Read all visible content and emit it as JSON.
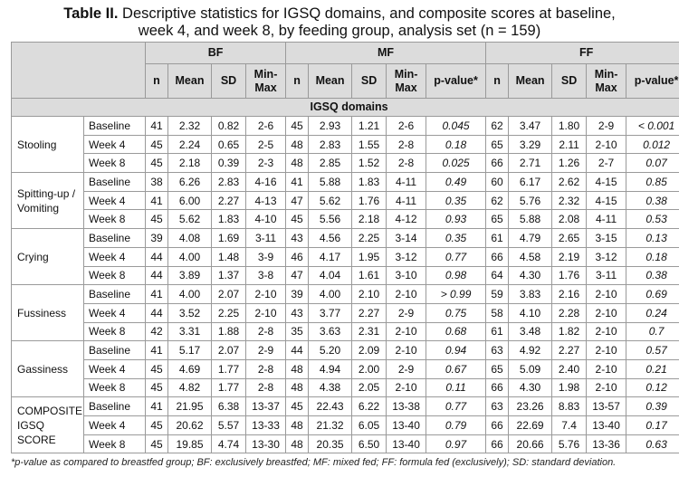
{
  "title": {
    "label": "Table II.",
    "line1": "Descriptive statistics for IGSQ domains, and composite scores at baseline,",
    "line2": "week 4, and week 8, by feeding group, analysis set (n = 159)"
  },
  "headers": {
    "groups": [
      "BF",
      "MF",
      "FF"
    ],
    "columns": [
      "n",
      "Mean",
      "SD",
      "Min-Max",
      "p-value*"
    ]
  },
  "section_label": "IGSQ domains",
  "domains": [
    {
      "name": "Stooling",
      "rows": [
        {
          "time": "Baseline",
          "bf": [
            "41",
            "2.32",
            "0.82",
            "2-6"
          ],
          "mf": [
            "45",
            "2.93",
            "1.21",
            "2-6"
          ],
          "mf_p": "0.045",
          "ff": [
            "62",
            "3.47",
            "1.80",
            "2-9"
          ],
          "ff_p": "< 0.001"
        },
        {
          "time": "Week 4",
          "bf": [
            "45",
            "2.24",
            "0.65",
            "2-5"
          ],
          "mf": [
            "48",
            "2.83",
            "1.55",
            "2-8"
          ],
          "mf_p": "0.18",
          "ff": [
            "65",
            "3.29",
            "2.11",
            "2-10"
          ],
          "ff_p": "0.012"
        },
        {
          "time": "Week 8",
          "bf": [
            "45",
            "2.18",
            "0.39",
            "2-3"
          ],
          "mf": [
            "48",
            "2.85",
            "1.52",
            "2-8"
          ],
          "mf_p": "0.025",
          "ff": [
            "66",
            "2.71",
            "1.26",
            "2-7"
          ],
          "ff_p": "0.07"
        }
      ]
    },
    {
      "name": "Spitting-up / Vomiting",
      "rows": [
        {
          "time": "Baseline",
          "bf": [
            "38",
            "6.26",
            "2.83",
            "4-16"
          ],
          "mf": [
            "41",
            "5.88",
            "1.83",
            "4-11"
          ],
          "mf_p": "0.49",
          "ff": [
            "60",
            "6.17",
            "2.62",
            "4-15"
          ],
          "ff_p": "0.85"
        },
        {
          "time": "Week 4",
          "bf": [
            "41",
            "6.00",
            "2.27",
            "4-13"
          ],
          "mf": [
            "47",
            "5.62",
            "1.76",
            "4-11"
          ],
          "mf_p": "0.35",
          "ff": [
            "62",
            "5.76",
            "2.32",
            "4-15"
          ],
          "ff_p": "0.38"
        },
        {
          "time": "Week 8",
          "bf": [
            "45",
            "5.62",
            "1.83",
            "4-10"
          ],
          "mf": [
            "45",
            "5.56",
            "2.18",
            "4-12"
          ],
          "mf_p": "0.93",
          "ff": [
            "65",
            "5.88",
            "2.08",
            "4-11"
          ],
          "ff_p": "0.53"
        }
      ]
    },
    {
      "name": "Crying",
      "rows": [
        {
          "time": "Baseline",
          "bf": [
            "39",
            "4.08",
            "1.69",
            "3-11"
          ],
          "mf": [
            "43",
            "4.56",
            "2.25",
            "3-14"
          ],
          "mf_p": "0.35",
          "ff": [
            "61",
            "4.79",
            "2.65",
            "3-15"
          ],
          "ff_p": "0.13"
        },
        {
          "time": "Week 4",
          "bf": [
            "44",
            "4.00",
            "1.48",
            "3-9"
          ],
          "mf": [
            "46",
            "4.17",
            "1.95",
            "3-12"
          ],
          "mf_p": "0.77",
          "ff": [
            "66",
            "4.58",
            "2.19",
            "3-12"
          ],
          "ff_p": "0.18"
        },
        {
          "time": "Week 8",
          "bf": [
            "44",
            "3.89",
            "1.37",
            "3-8"
          ],
          "mf": [
            "47",
            "4.04",
            "1.61",
            "3-10"
          ],
          "mf_p": "0.98",
          "ff": [
            "64",
            "4.30",
            "1.76",
            "3-11"
          ],
          "ff_p": "0.38"
        }
      ]
    },
    {
      "name": "Fussiness",
      "rows": [
        {
          "time": "Baseline",
          "bf": [
            "41",
            "4.00",
            "2.07",
            "2-10"
          ],
          "mf": [
            "39",
            "4.00",
            "2.10",
            "2-10"
          ],
          "mf_p": "> 0.99",
          "ff": [
            "59",
            "3.83",
            "2.16",
            "2-10"
          ],
          "ff_p": "0.69"
        },
        {
          "time": "Week 4",
          "bf": [
            "44",
            "3.52",
            "2.25",
            "2-10"
          ],
          "mf": [
            "43",
            "3.77",
            "2.27",
            "2-9"
          ],
          "mf_p": "0.75",
          "ff": [
            "58",
            "4.10",
            "2.28",
            "2-10"
          ],
          "ff_p": "0.24"
        },
        {
          "time": "Week 8",
          "bf": [
            "42",
            "3.31",
            "1.88",
            "2-8"
          ],
          "mf": [
            "35",
            "3.63",
            "2.31",
            "2-10"
          ],
          "mf_p": "0.68",
          "ff": [
            "61",
            "3.48",
            "1.82",
            "2-10"
          ],
          "ff_p": "0.7"
        }
      ]
    },
    {
      "name": "Gassiness",
      "rows": [
        {
          "time": "Baseline",
          "bf": [
            "41",
            "5.17",
            "2.07",
            "2-9"
          ],
          "mf": [
            "44",
            "5.20",
            "2.09",
            "2-10"
          ],
          "mf_p": "0.94",
          "ff": [
            "63",
            "4.92",
            "2.27",
            "2-10"
          ],
          "ff_p": "0.57"
        },
        {
          "time": "Week 4",
          "bf": [
            "45",
            "4.69",
            "1.77",
            "2-8"
          ],
          "mf": [
            "48",
            "4.94",
            "2.00",
            "2-9"
          ],
          "mf_p": "0.67",
          "ff": [
            "65",
            "5.09",
            "2.40",
            "2-10"
          ],
          "ff_p": "0.21"
        },
        {
          "time": "Week 8",
          "bf": [
            "45",
            "4.82",
            "1.77",
            "2-8"
          ],
          "mf": [
            "48",
            "4.38",
            "2.05",
            "2-10"
          ],
          "mf_p": "0.11",
          "ff": [
            "66",
            "4.30",
            "1.98",
            "2-10"
          ],
          "ff_p": "0.12"
        }
      ]
    },
    {
      "name": "COMPOSITE IGSQ SCORE",
      "rows": [
        {
          "time": "Baseline",
          "bf": [
            "41",
            "21.95",
            "6.38",
            "13-37"
          ],
          "mf": [
            "45",
            "22.43",
            "6.22",
            "13-38"
          ],
          "mf_p": "0.77",
          "ff": [
            "63",
            "23.26",
            "8.83",
            "13-57"
          ],
          "ff_p": "0.39"
        },
        {
          "time": "Week 4",
          "bf": [
            "45",
            "20.62",
            "5.57",
            "13-33"
          ],
          "mf": [
            "48",
            "21.32",
            "6.05",
            "13-40"
          ],
          "mf_p": "0.79",
          "ff": [
            "66",
            "22.69",
            "7.4",
            "13-40"
          ],
          "ff_p": "0.17"
        },
        {
          "time": "Week 8",
          "bf": [
            "45",
            "19.85",
            "4.74",
            "13-30"
          ],
          "mf": [
            "48",
            "20.35",
            "6.50",
            "13-40"
          ],
          "mf_p": "0.97",
          "ff": [
            "66",
            "20.66",
            "5.76",
            "13-36"
          ],
          "ff_p": "0.63"
        }
      ]
    }
  ],
  "footnote": "*p-value as compared to breastfed group; BF: exclusively breastfed; MF: mixed fed; FF: formula fed (exclusively); SD: standard deviation."
}
